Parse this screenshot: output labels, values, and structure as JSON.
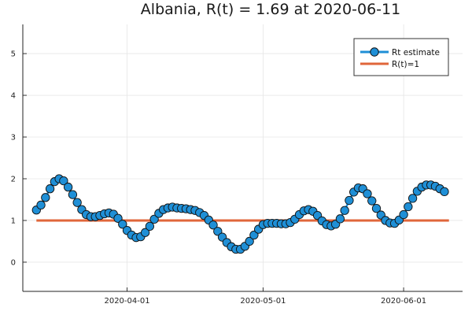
{
  "chart_data": {
    "type": "line",
    "title": "Albania, R(t) = 1.69 at 2020-06-11",
    "xlabel": "",
    "ylabel": "",
    "x_start": "2020-03-12",
    "x_end": "2020-06-11",
    "xlim": [
      "2020-03-09",
      "2020-06-14"
    ],
    "ylim": [
      -0.7,
      5.7
    ],
    "y_ticks": [
      0,
      1,
      2,
      3,
      4,
      5
    ],
    "x_ticks": [
      "2020-04-01",
      "2020-05-01",
      "2020-06-01"
    ],
    "grid": true,
    "legend_position": "top-right",
    "series": [
      {
        "name": "Rt estimate",
        "color": "#1f8fd6",
        "marker": "circle",
        "values": [
          1.25,
          1.37,
          1.55,
          1.76,
          1.93,
          2.0,
          1.95,
          1.8,
          1.62,
          1.43,
          1.26,
          1.14,
          1.09,
          1.09,
          1.12,
          1.16,
          1.18,
          1.15,
          1.05,
          0.91,
          0.76,
          0.65,
          0.59,
          0.61,
          0.71,
          0.86,
          1.03,
          1.17,
          1.26,
          1.3,
          1.32,
          1.3,
          1.29,
          1.28,
          1.26,
          1.24,
          1.19,
          1.12,
          1.01,
          0.89,
          0.74,
          0.6,
          0.47,
          0.37,
          0.31,
          0.31,
          0.38,
          0.5,
          0.65,
          0.79,
          0.9,
          0.93,
          0.93,
          0.93,
          0.92,
          0.92,
          0.95,
          1.03,
          1.14,
          1.23,
          1.26,
          1.22,
          1.12,
          0.99,
          0.9,
          0.87,
          0.91,
          1.04,
          1.24,
          1.48,
          1.68,
          1.78,
          1.76,
          1.64,
          1.47,
          1.29,
          1.13,
          1.0,
          0.94,
          0.93,
          1.01,
          1.14,
          1.33,
          1.53,
          1.7,
          1.8,
          1.85,
          1.85,
          1.82,
          1.76,
          1.69
        ]
      },
      {
        "name": "R(t)=1",
        "color": "#e0663a",
        "marker": "none",
        "values": [
          1,
          1
        ]
      }
    ]
  }
}
